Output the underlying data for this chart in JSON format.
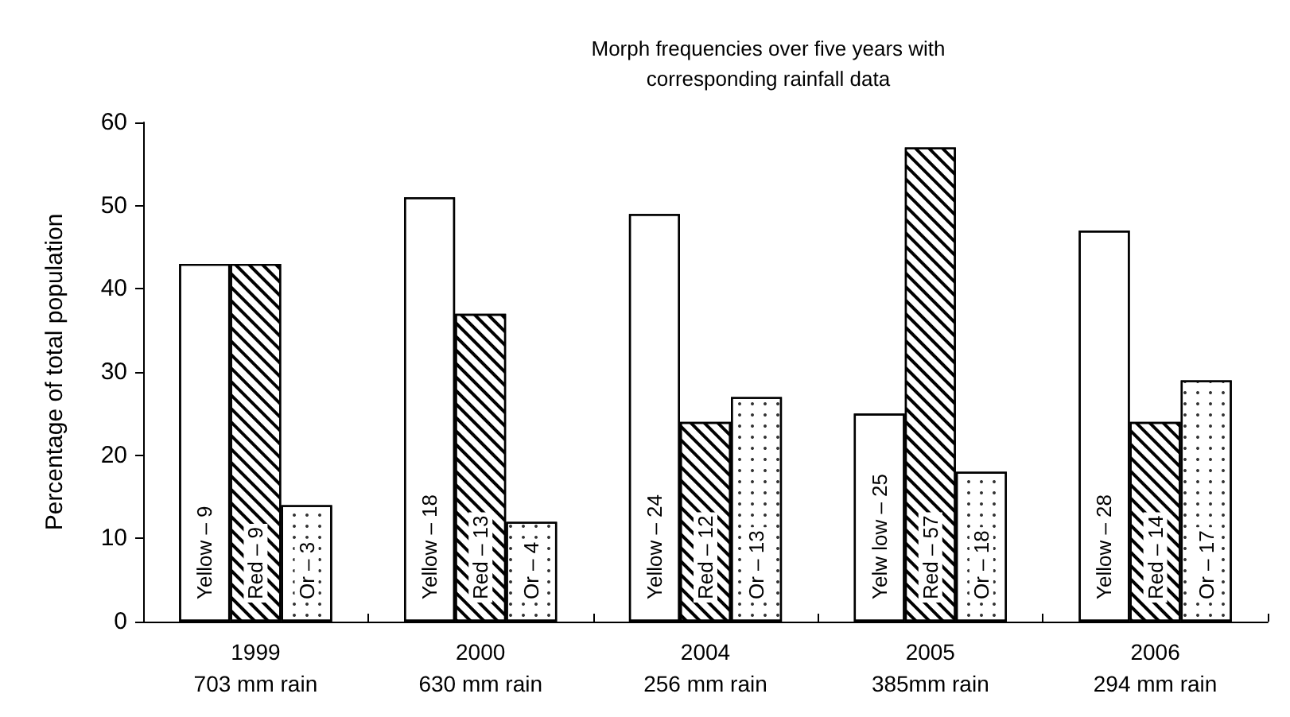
{
  "chart_data": {
    "type": "bar",
    "title": "Morph frequencies over five years with\ncorresponding rainfall data",
    "ylabel": "Percentage of total population",
    "categories": [
      "1999\n703 mm rain",
      "2000\n630 mm rain",
      "2004\n256 mm rain",
      "2005\n385mm rain",
      "2006\n294 mm rain"
    ],
    "series": [
      {
        "color": "#ffffff",
        "values": [
          43,
          51,
          49,
          25,
          47
        ]
      },
      {
        "color": "#ffffff",
        "values": [
          43,
          37,
          24,
          57,
          24
        ]
      },
      {
        "color": "#ffffff",
        "values": [
          14,
          12,
          27,
          18,
          29
        ]
      }
    ],
    "annotations": [
      "Yellow – 9",
      "Red – 9",
      "Or – 3",
      "Yellow – 18",
      "Red – 13",
      "Or – 4",
      "Yellow – 24",
      "Red – 12",
      "Or – 13",
      "Yelw low – 25",
      "Red – 57",
      "Or – 18",
      "Yellow – 28",
      "Red – 14",
      "Or – 17"
    ],
    "ylim": [
      0,
      60
    ],
    "yticks": [
      0,
      10,
      20,
      30,
      40,
      50,
      60
    ],
    "grid": false
  }
}
